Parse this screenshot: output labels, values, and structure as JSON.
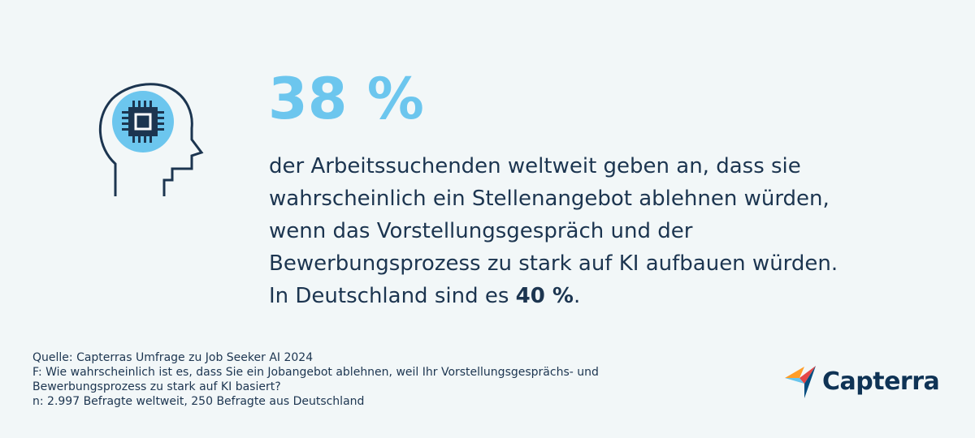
{
  "stat": {
    "value": "38 %"
  },
  "description": {
    "lines": [
      "der Arbeitssuchenden weltweit geben an, dass sie",
      "wahrscheinlich ein Stellenangebot ablehnen würden,",
      "wenn das Vorstellungsgespräch und der",
      "Bewerbungsprozess zu stark auf KI aufbauen würden."
    ],
    "germany_prefix": "In Deutschland sind es ",
    "germany_value": "40 %",
    "germany_suffix": "."
  },
  "source": {
    "line1": "Quelle: Capterras Umfrage zu Job Seeker AI 2024",
    "line2": "F: Wie wahrscheinlich ist es, dass Sie ein Jobangebot ablehnen, weil Ihr Vorstellungsgesprächs- und",
    "line3": "Bewerbungsprozess zu stark auf KI basiert?",
    "line4": "n: 2.997 Befragte weltweit, 250 Befragte aus Deutschland"
  },
  "logo": {
    "text": "Capterra",
    "icon": "capterra-arrow-icon"
  },
  "icon": {
    "name": "head-ai-chip-icon"
  },
  "colors": {
    "background": "#f2f7f8",
    "accent": "#6cc6ee",
    "text": "#1c3550"
  }
}
